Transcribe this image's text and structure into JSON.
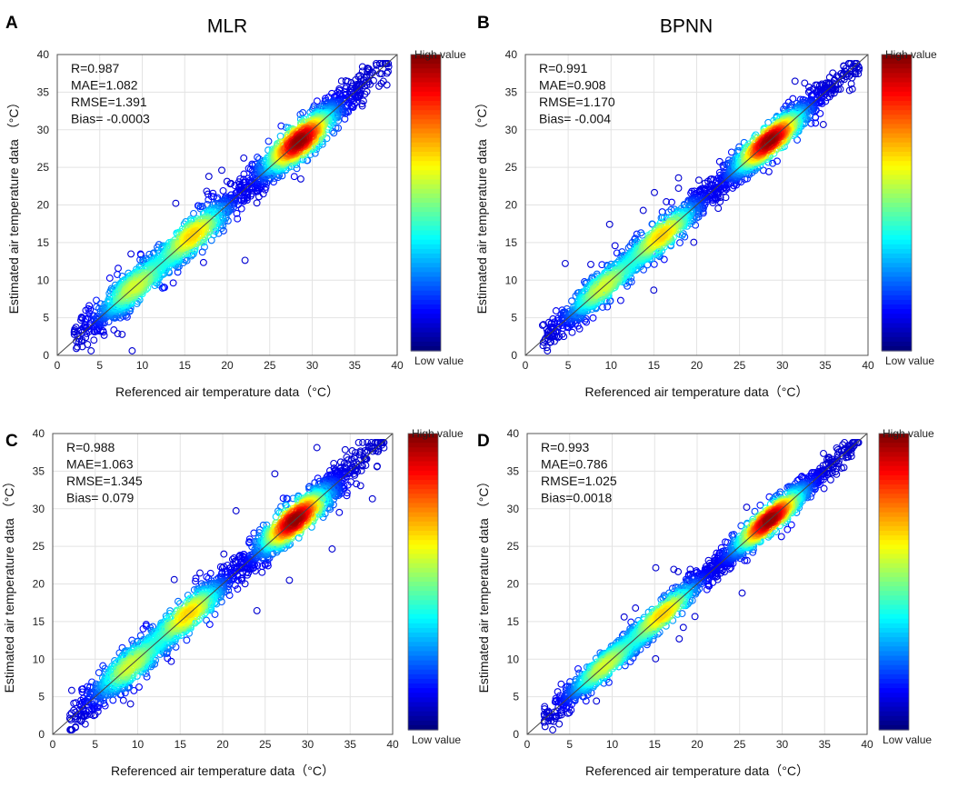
{
  "figure": {
    "colorbar": {
      "high_label": "High value",
      "low_label": "Low value"
    }
  },
  "chart_data": [
    {
      "panel": "A",
      "type": "scatter",
      "title": "MLR",
      "xlabel": "Referenced air temperature data（°C）",
      "ylabel": "Estimated air temperature data （°C）",
      "xlim": [
        0,
        40
      ],
      "ylim": [
        0,
        40
      ],
      "xticks": [
        0,
        5,
        10,
        15,
        20,
        25,
        30,
        35,
        40
      ],
      "yticks": [
        0,
        5,
        10,
        15,
        20,
        25,
        30,
        35,
        40
      ],
      "grid": true,
      "reference_line": "1:1",
      "stats": [
        "R=0.987",
        "MAE=1.082",
        "RMSE=1.391",
        "Bias= -0.0003"
      ],
      "density_centers": [
        [
          9,
          9
        ],
        [
          16,
          16
        ],
        [
          28.5,
          28.5
        ]
      ],
      "x_range": [
        2,
        39
      ],
      "spread": 1.39
    },
    {
      "panel": "B",
      "type": "scatter",
      "title": "BPNN",
      "xlabel": "Referenced  air temperature data（°C）",
      "ylabel": "Estimated air temperature data （°C）",
      "xlim": [
        0,
        40
      ],
      "ylim": [
        0,
        40
      ],
      "xticks": [
        0,
        5,
        10,
        15,
        20,
        25,
        30,
        35,
        40
      ],
      "yticks": [
        0,
        5,
        10,
        15,
        20,
        25,
        30,
        35,
        40
      ],
      "grid": true,
      "reference_line": "1:1",
      "stats": [
        "R=0.991",
        "MAE=0.908",
        "RMSE=1.170",
        "Bias= -0.004"
      ],
      "density_centers": [
        [
          9,
          9
        ],
        [
          16,
          16
        ],
        [
          28.5,
          28.5
        ]
      ],
      "x_range": [
        2,
        39
      ],
      "spread": 1.17
    },
    {
      "panel": "C",
      "type": "scatter",
      "title": "",
      "xlabel": "Referenced  air temperature data（°C）",
      "ylabel": "Estimated air temperature data （°C）",
      "xlim": [
        0,
        40
      ],
      "ylim": [
        0,
        40
      ],
      "xticks": [
        0,
        5,
        10,
        15,
        20,
        25,
        30,
        35,
        40
      ],
      "yticks": [
        0,
        5,
        10,
        15,
        20,
        25,
        30,
        35,
        40
      ],
      "grid": true,
      "reference_line": "1:1",
      "stats": [
        "R=0.988",
        "MAE=1.063",
        "RMSE=1.345",
        "Bias= 0.079"
      ],
      "density_centers": [
        [
          9,
          9
        ],
        [
          16,
          16
        ],
        [
          28.5,
          28.5
        ]
      ],
      "x_range": [
        2,
        39
      ],
      "spread": 1.34
    },
    {
      "panel": "D",
      "type": "scatter",
      "title": "",
      "xlabel": "Referenced  air temperature data（°C）",
      "ylabel": "Estimated air temperature data （°C）",
      "xlim": [
        0,
        40
      ],
      "ylim": [
        0,
        40
      ],
      "xticks": [
        0,
        5,
        10,
        15,
        20,
        25,
        30,
        35,
        40
      ],
      "yticks": [
        0,
        5,
        10,
        15,
        20,
        25,
        30,
        35,
        40
      ],
      "grid": true,
      "reference_line": "1:1",
      "stats": [
        "R=0.993",
        "MAE=0.786",
        "RMSE=1.025",
        "Bias=0.0018"
      ],
      "density_centers": [
        [
          9,
          9
        ],
        [
          16,
          16
        ],
        [
          28.5,
          28.5
        ]
      ],
      "x_range": [
        2,
        39
      ],
      "spread": 1.02
    }
  ]
}
